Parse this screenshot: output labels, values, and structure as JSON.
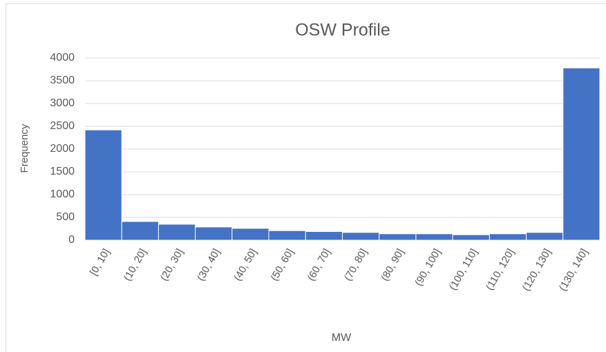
{
  "chart_data": {
    "type": "bar",
    "title": "OSW Profile",
    "x_label": "MW",
    "y_label": "Frequency",
    "categories": [
      "[0, 10]",
      "(10, 20]",
      "(20, 30]",
      "(30, 40]",
      "(40, 50]",
      "(50, 60]",
      "(60, 70]",
      "(70, 80]",
      "(80, 90]",
      "(90, 100]",
      "(100, 110]",
      "(110, 120]",
      "(120, 130]",
      "(130, 140]"
    ],
    "values": [
      2420,
      410,
      350,
      290,
      260,
      210,
      190,
      170,
      140,
      140,
      120,
      140,
      170,
      3780
    ],
    "color": "#4472c4",
    "ylim": [
      0,
      4000
    ],
    "yticks": [
      0,
      500,
      1000,
      1500,
      2000,
      2500,
      3000,
      3500,
      4000
    ],
    "grid": true
  }
}
